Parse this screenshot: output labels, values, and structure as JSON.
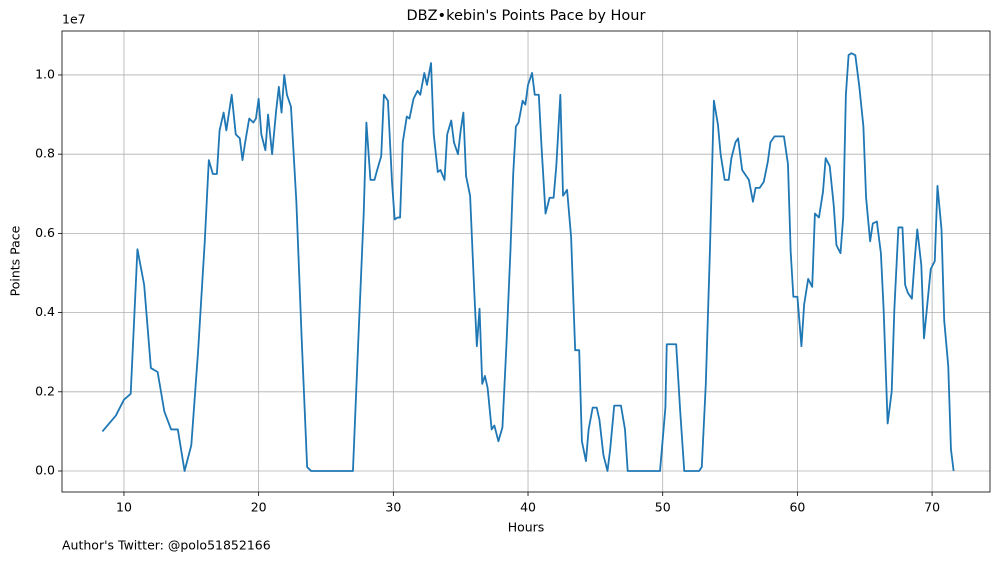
{
  "chart_data": {
    "type": "line",
    "title": "DBZ•kebin's Points Pace by Hour",
    "xlabel": "Hours",
    "ylabel": "Points Pace",
    "y_offset_label": "1e7",
    "footer": "Author's Twitter: @polo51852166",
    "grid": true,
    "xlim": [
      5.4,
      74.3
    ],
    "xticks": [
      10,
      20,
      30,
      40,
      50,
      60,
      70
    ],
    "ylim": [
      -530000,
      11110000
    ],
    "yticks": [
      {
        "value": 0,
        "label": "0.0"
      },
      {
        "value": 2000000,
        "label": "0.2"
      },
      {
        "value": 4000000,
        "label": "0.4"
      },
      {
        "value": 6000000,
        "label": "0.6"
      },
      {
        "value": 8000000,
        "label": "0.8"
      },
      {
        "value": 10000000,
        "label": "1.0"
      }
    ],
    "series": [
      {
        "color": "#1f77b4",
        "x": [
          8.4,
          9.4,
          10,
          10.5,
          11,
          11.5,
          12,
          12.5,
          13,
          13.5,
          14,
          14.5,
          15,
          15.5,
          16,
          16.3,
          16.6,
          16.9,
          17.1,
          17.4,
          17.6,
          18,
          18.3,
          18.6,
          18.8,
          19,
          19.3,
          19.6,
          19.8,
          20,
          20.2,
          20.5,
          20.7,
          21,
          21.3,
          21.5,
          21.7,
          21.9,
          22.1,
          22.4,
          22.8,
          23.2,
          23.6,
          23.9,
          27,
          27.4,
          27.8,
          28,
          28.3,
          28.6,
          28.8,
          29.1,
          29.3,
          29.6,
          29.9,
          30.1,
          30.3,
          30.5,
          30.7,
          31,
          31.2,
          31.5,
          31.8,
          32,
          32.3,
          32.5,
          32.8,
          33,
          33.3,
          33.5,
          33.8,
          34,
          34.3,
          34.5,
          34.8,
          35,
          35.2,
          35.4,
          35.7,
          36,
          36.2,
          36.4,
          36.6,
          36.8,
          37,
          37.3,
          37.5,
          37.8,
          38.1,
          38.4,
          38.7,
          38.9,
          39.1,
          39.3,
          39.6,
          39.8,
          40,
          40.3,
          40.5,
          40.8,
          41,
          41.3,
          41.6,
          41.9,
          42.1,
          42.4,
          42.6,
          42.9,
          43.2,
          43.5,
          43.8,
          44,
          44.3,
          44.5,
          44.8,
          45.1,
          45.3,
          45.6,
          45.9,
          46.1,
          46.4,
          46.9,
          47.2,
          47.4,
          49.8,
          50.2,
          50.3,
          51,
          51.3,
          51.6,
          52.7,
          52.9,
          53.2,
          53.5,
          53.8,
          54.1,
          54.3,
          54.6,
          54.9,
          55.1,
          55.4,
          55.6,
          55.9,
          56.1,
          56.4,
          56.7,
          56.9,
          57.2,
          57.5,
          57.8,
          58,
          58.3,
          58.8,
          59,
          59.3,
          59.5,
          59.7,
          60,
          60.3,
          60.5,
          60.8,
          61.1,
          61.3,
          61.6,
          61.9,
          62.1,
          62.4,
          62.7,
          62.9,
          63.2,
          63.4,
          63.6,
          63.8,
          64,
          64.3,
          64.6,
          64.9,
          65.1,
          65.4,
          65.6,
          65.9,
          66.2,
          66.4,
          66.7,
          67,
          67.2,
          67.5,
          67.8,
          68,
          68.2,
          68.5,
          68.7,
          68.9,
          69.2,
          69.4,
          69.7,
          69.9,
          70.2,
          70.4,
          70.7,
          70.9,
          71.2,
          71.4,
          71.6
        ],
        "values": [
          1000000,
          1400000,
          1800000,
          1950000,
          5600000,
          4700000,
          2600000,
          2500000,
          1500000,
          1050000,
          1050000,
          0,
          650000,
          3000000,
          5800000,
          7850000,
          7500000,
          7500000,
          8600000,
          9050000,
          8600000,
          9500000,
          8500000,
          8400000,
          7850000,
          8300000,
          8900000,
          8800000,
          8900000,
          9400000,
          8500000,
          8100000,
          9000000,
          8000000,
          9100000,
          9700000,
          9050000,
          10000000,
          9500000,
          9200000,
          6800000,
          3300000,
          100000,
          0,
          0,
          3300000,
          6500000,
          8800000,
          7350000,
          7350000,
          7600000,
          7950000,
          9500000,
          9350000,
          7300000,
          6350000,
          6400000,
          6400000,
          8300000,
          8950000,
          8900000,
          9400000,
          9600000,
          9500000,
          10050000,
          9750000,
          10300000,
          8500000,
          7550000,
          7600000,
          7350000,
          8500000,
          8850000,
          8300000,
          8000000,
          8600000,
          9050000,
          7450000,
          6950000,
          4600000,
          3150000,
          4100000,
          2200000,
          2400000,
          2100000,
          1050000,
          1150000,
          750000,
          1100000,
          3200000,
          5600000,
          7500000,
          8700000,
          8800000,
          9350000,
          9250000,
          9750000,
          10050000,
          9500000,
          9500000,
          8200000,
          6500000,
          6900000,
          6900000,
          7700000,
          9500000,
          6950000,
          7100000,
          5900000,
          3050000,
          3050000,
          750000,
          250000,
          1050000,
          1600000,
          1600000,
          1300000,
          400000,
          0,
          550000,
          1650000,
          1650000,
          1050000,
          0,
          0,
          1600000,
          3200000,
          3200000,
          1500000,
          0,
          0,
          100000,
          2200000,
          5500000,
          9350000,
          8750000,
          8000000,
          7350000,
          7350000,
          7900000,
          8300000,
          8400000,
          7600000,
          7500000,
          7350000,
          6800000,
          7150000,
          7150000,
          7300000,
          7800000,
          8300000,
          8450000,
          8450000,
          8450000,
          7750000,
          5550000,
          4400000,
          4400000,
          3150000,
          4200000,
          4850000,
          4650000,
          6500000,
          6400000,
          7050000,
          7900000,
          7700000,
          6700000,
          5700000,
          5500000,
          6400000,
          9500000,
          10500000,
          10550000,
          10500000,
          9700000,
          8700000,
          6900000,
          5800000,
          6250000,
          6300000,
          5500000,
          4100000,
          1200000,
          2000000,
          4100000,
          6150000,
          6150000,
          4700000,
          4500000,
          4350000,
          5300000,
          6100000,
          5200000,
          3350000,
          4400000,
          5100000,
          5300000,
          7200000,
          6100000,
          3800000,
          2650000,
          550000,
          0
        ]
      }
    ]
  }
}
